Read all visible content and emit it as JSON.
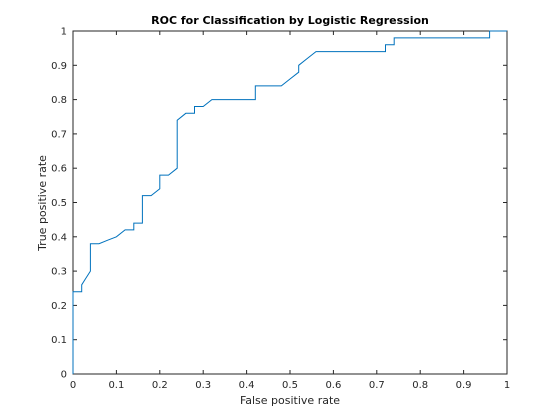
{
  "chart_data": {
    "type": "line",
    "title": "ROC for Classification by Logistic Regression",
    "xlabel": "False positive rate",
    "ylabel": "True positive rate",
    "xlim": [
      0,
      1
    ],
    "ylim": [
      0,
      1
    ],
    "xticks": [
      "0",
      "0.1",
      "0.2",
      "0.3",
      "0.4",
      "0.5",
      "0.6",
      "0.7",
      "0.8",
      "0.9",
      "1"
    ],
    "yticks": [
      "0",
      "0.1",
      "0.2",
      "0.3",
      "0.4",
      "0.5",
      "0.6",
      "0.7",
      "0.8",
      "0.9",
      "1"
    ],
    "grid": false,
    "line_color": "#0072BD",
    "series": [
      {
        "x": [
          0,
          0,
          0.02,
          0.02,
          0.03,
          0.04,
          0.04,
          0.06,
          0.08,
          0.1,
          0.12,
          0.12,
          0.14,
          0.14,
          0.16,
          0.16,
          0.18,
          0.2,
          0.2,
          0.22,
          0.24,
          0.24,
          0.25,
          0.26,
          0.28,
          0.28,
          0.3,
          0.32,
          0.32,
          0.34,
          0.42,
          0.42,
          0.48,
          0.5,
          0.52,
          0.52,
          0.54,
          0.56,
          0.72,
          0.72,
          0.74,
          0.74,
          0.96,
          0.96,
          1.0
        ],
        "y": [
          0,
          0.24,
          0.24,
          0.26,
          0.28,
          0.3,
          0.38,
          0.38,
          0.39,
          0.4,
          0.42,
          0.42,
          0.42,
          0.44,
          0.44,
          0.52,
          0.52,
          0.54,
          0.58,
          0.58,
          0.6,
          0.74,
          0.75,
          0.76,
          0.76,
          0.78,
          0.78,
          0.8,
          0.8,
          0.8,
          0.8,
          0.84,
          0.84,
          0.86,
          0.88,
          0.9,
          0.92,
          0.94,
          0.94,
          0.96,
          0.96,
          0.98,
          0.98,
          1.0,
          1.0
        ]
      }
    ]
  }
}
